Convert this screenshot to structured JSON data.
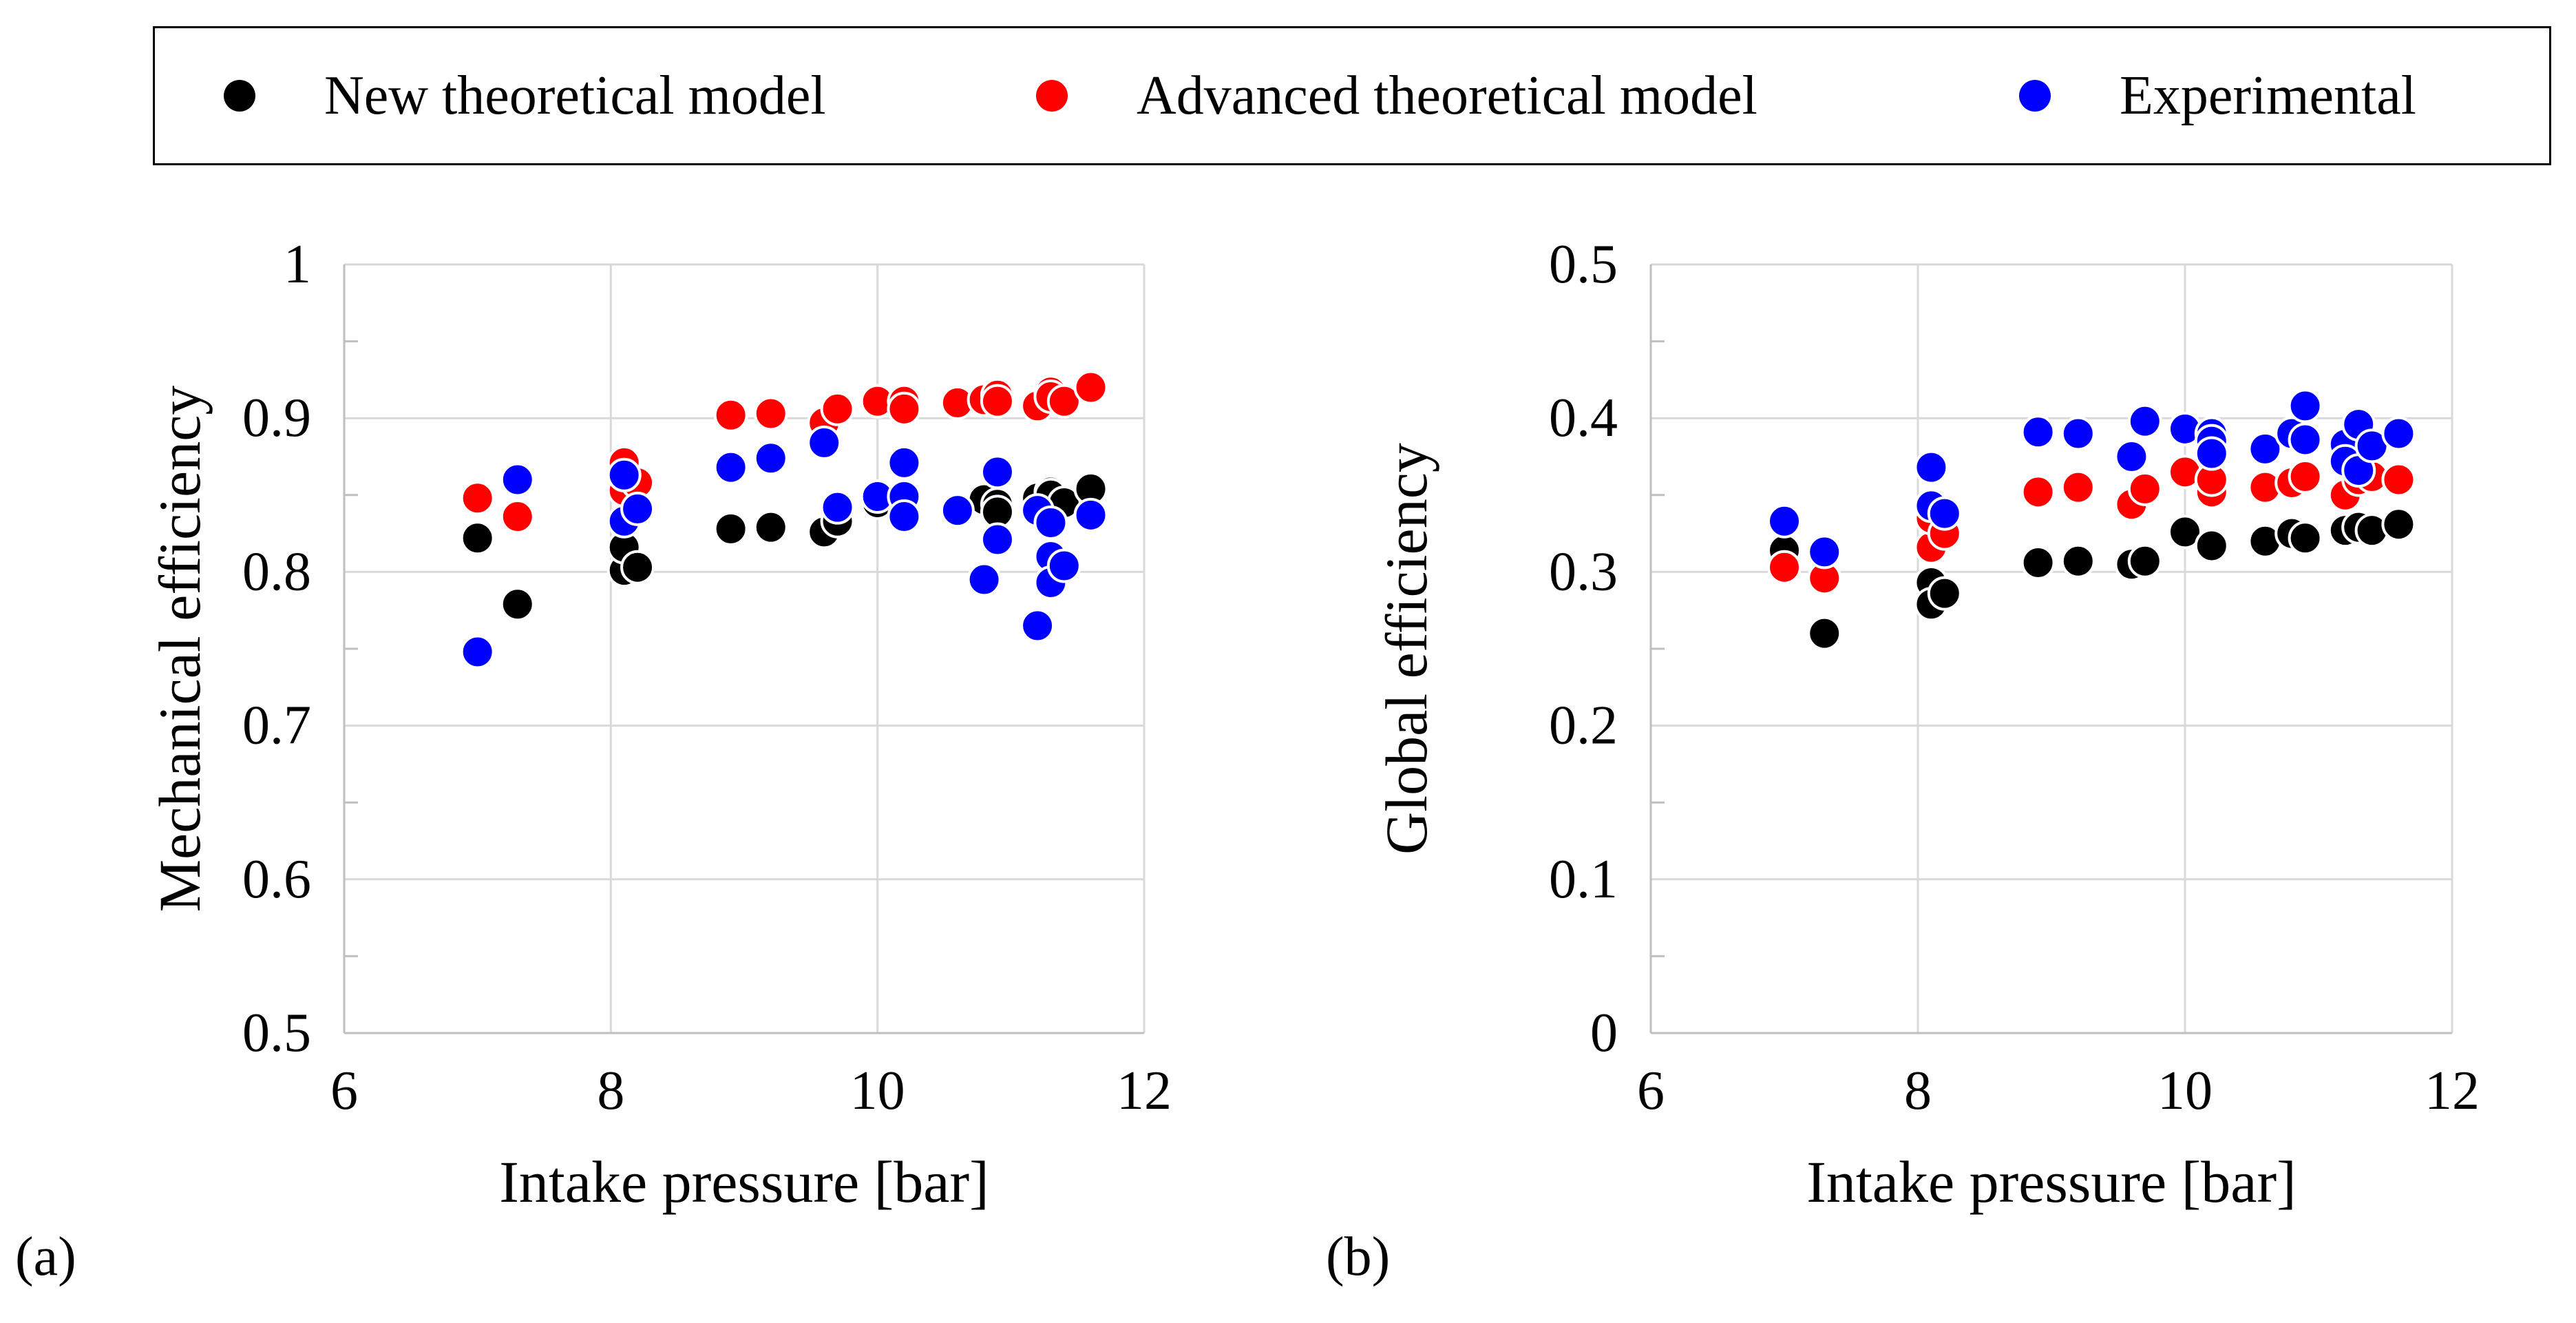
{
  "legend": {
    "items": [
      {
        "label": "New theoretical model",
        "color": "#000000"
      },
      {
        "label": "Advanced theoretical model",
        "color": "#ff0000"
      },
      {
        "label": "Experimental",
        "color": "#0000ff"
      }
    ]
  },
  "panels": {
    "a": {
      "label": "(a)"
    },
    "b": {
      "label": "(b)"
    }
  },
  "chart_data": [
    {
      "type": "scatter",
      "xlabel": "Intake pressure [bar]",
      "ylabel": "Mechanical efficiency",
      "xlim": [
        6,
        12
      ],
      "ylim": [
        0.5,
        1
      ],
      "xticks": [
        "6",
        "8",
        "10",
        "12"
      ],
      "yticks": [
        "0.5",
        "0.6",
        "0.7",
        "0.8",
        "0.9",
        "1"
      ],
      "grid": true,
      "series": [
        {
          "name": "New theoretical model",
          "color": "#000000",
          "x": [
            7.0,
            7.3,
            8.1,
            8.1,
            8.2,
            8.9,
            9.2,
            9.6,
            9.7,
            10.0,
            10.2,
            10.8,
            10.9,
            10.9,
            11.2,
            11.3,
            11.3,
            11.4,
            11.6
          ],
          "y": [
            0.822,
            0.779,
            0.801,
            0.816,
            0.803,
            0.828,
            0.829,
            0.826,
            0.833,
            0.845,
            0.848,
            0.847,
            0.844,
            0.839,
            0.848,
            0.852,
            0.85,
            0.845,
            0.854
          ]
        },
        {
          "name": "Advanced theoretical model",
          "color": "#ff0000",
          "x": [
            7.0,
            7.3,
            8.1,
            8.1,
            8.2,
            8.9,
            9.2,
            9.6,
            9.7,
            10.0,
            10.2,
            10.2,
            10.6,
            10.8,
            10.9,
            10.9,
            11.2,
            11.3,
            11.3,
            11.4,
            11.6
          ],
          "y": [
            0.848,
            0.836,
            0.871,
            0.853,
            0.858,
            0.902,
            0.903,
            0.897,
            0.906,
            0.911,
            0.911,
            0.906,
            0.91,
            0.912,
            0.915,
            0.911,
            0.908,
            0.917,
            0.914,
            0.911,
            0.92
          ]
        },
        {
          "name": "Experimental",
          "color": "#0000ff",
          "x": [
            7.0,
            7.3,
            8.1,
            8.1,
            8.2,
            8.9,
            9.2,
            9.6,
            9.7,
            10.0,
            10.2,
            10.2,
            10.2,
            10.6,
            10.8,
            10.9,
            10.9,
            11.2,
            11.2,
            11.3,
            11.3,
            11.3,
            11.4,
            11.6
          ],
          "y": [
            0.748,
            0.86,
            0.863,
            0.833,
            0.841,
            0.868,
            0.874,
            0.884,
            0.842,
            0.849,
            0.871,
            0.849,
            0.836,
            0.84,
            0.795,
            0.865,
            0.821,
            0.765,
            0.84,
            0.81,
            0.832,
            0.793,
            0.804,
            0.837
          ]
        }
      ]
    },
    {
      "type": "scatter",
      "xlabel": "Intake pressure [bar]",
      "ylabel": "Global efficiency",
      "xlim": [
        6,
        12
      ],
      "ylim": [
        0,
        0.5
      ],
      "xticks": [
        "6",
        "8",
        "10",
        "12"
      ],
      "yticks": [
        "0",
        "0.1",
        "0.2",
        "0.3",
        "0.4",
        "0.5"
      ],
      "grid": true,
      "series": [
        {
          "name": "New theoretical model",
          "color": "#000000",
          "x": [
            7.0,
            7.3,
            8.1,
            8.1,
            8.2,
            8.9,
            9.2,
            9.6,
            9.7,
            10.0,
            10.2,
            10.6,
            10.8,
            10.9,
            11.2,
            11.3,
            11.4,
            11.6
          ],
          "y": [
            0.314,
            0.26,
            0.293,
            0.279,
            0.286,
            0.306,
            0.307,
            0.305,
            0.307,
            0.326,
            0.317,
            0.32,
            0.325,
            0.322,
            0.327,
            0.329,
            0.327,
            0.331
          ]
        },
        {
          "name": "Advanced theoretical model",
          "color": "#ff0000",
          "x": [
            7.0,
            7.3,
            8.1,
            8.1,
            8.2,
            8.9,
            9.2,
            9.6,
            9.7,
            10.0,
            10.2,
            10.2,
            10.6,
            10.8,
            10.9,
            11.2,
            11.3,
            11.4,
            11.6
          ],
          "y": [
            0.303,
            0.296,
            0.316,
            0.335,
            0.325,
            0.352,
            0.355,
            0.344,
            0.354,
            0.365,
            0.352,
            0.36,
            0.355,
            0.358,
            0.362,
            0.35,
            0.36,
            0.362,
            0.36
          ]
        },
        {
          "name": "Experimental",
          "color": "#0000ff",
          "x": [
            7.0,
            7.3,
            8.1,
            8.1,
            8.2,
            8.9,
            9.2,
            9.6,
            9.7,
            10.0,
            10.2,
            10.2,
            10.2,
            10.6,
            10.8,
            10.9,
            10.9,
            11.2,
            11.2,
            11.3,
            11.3,
            11.4,
            11.6
          ],
          "y": [
            0.333,
            0.313,
            0.368,
            0.343,
            0.338,
            0.391,
            0.39,
            0.375,
            0.398,
            0.393,
            0.39,
            0.385,
            0.377,
            0.38,
            0.39,
            0.408,
            0.386,
            0.383,
            0.372,
            0.396,
            0.366,
            0.382,
            0.39
          ]
        }
      ]
    }
  ]
}
